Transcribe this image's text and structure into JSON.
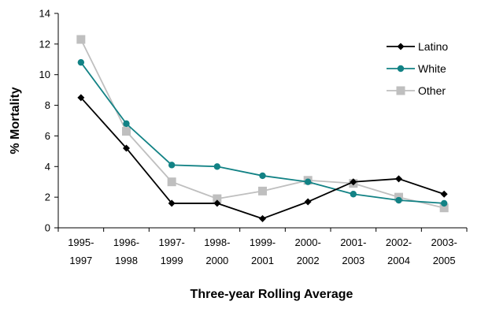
{
  "chart_data": {
    "type": "line",
    "title": "",
    "xlabel": "Three-year Rolling Average",
    "ylabel": "% Mortality",
    "categories": [
      [
        "1995-",
        "1997"
      ],
      [
        "1996-",
        "1998"
      ],
      [
        "1997-",
        "1999"
      ],
      [
        "1998-",
        "2000"
      ],
      [
        "1999-",
        "2001"
      ],
      [
        "2000-",
        "2002"
      ],
      [
        "2001-",
        "2003"
      ],
      [
        "2002-",
        "2004"
      ],
      [
        "2003-",
        "2005"
      ]
    ],
    "ylim": [
      0,
      14
    ],
    "yticks": [
      0,
      2,
      4,
      6,
      8,
      10,
      12,
      14
    ],
    "grid": false,
    "legend_position": "right",
    "series": [
      {
        "name": "Latino",
        "color": "#000000",
        "marker": "diamond",
        "values": [
          8.5,
          5.2,
          1.6,
          1.6,
          0.6,
          1.7,
          3.0,
          3.2,
          2.2
        ]
      },
      {
        "name": "White",
        "color": "#128285",
        "marker": "circle",
        "values": [
          10.8,
          6.8,
          4.1,
          4.0,
          3.4,
          3.0,
          2.2,
          1.8,
          1.6
        ]
      },
      {
        "name": "Other",
        "color": "#bfbfbf",
        "marker": "square",
        "values": [
          12.3,
          6.3,
          3.0,
          1.9,
          2.4,
          3.1,
          2.9,
          2.0,
          1.3
        ]
      }
    ]
  }
}
